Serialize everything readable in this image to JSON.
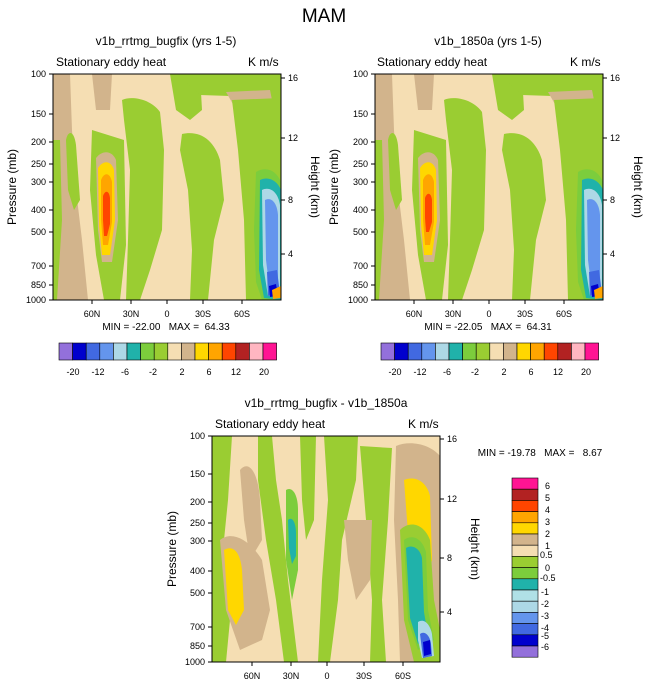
{
  "page": {
    "title": "MAM"
  },
  "colors": {
    "cb_top": [
      "#9370db",
      "#0000cd",
      "#4169e1",
      "#6495ed",
      "#add8e6",
      "#20b2aa",
      "#7ccd3c",
      "#9acd32",
      "#f5deb3",
      "#d2b48c",
      "#ffd700",
      "#ffa500",
      "#ff4500",
      "#b22222",
      "#ffb6c1",
      "#ff1493"
    ],
    "cb_diff": [
      "#9370db",
      "#0000cd",
      "#4169e1",
      "#6495ed",
      "#add8e6",
      "#b0e0e6",
      "#20b2aa",
      "#7ccd3c",
      "#9acd32",
      "#f5deb3",
      "#d2b48c",
      "#ffd700",
      "#ffa500",
      "#ff4500",
      "#b22222",
      "#ff1493"
    ]
  },
  "chart_data": [
    {
      "type": "heatmap",
      "title": "v1b_rrtmg_bugfix (yrs 1-5)",
      "subtitle": "Stationary eddy heat",
      "units": "K m/s",
      "ylabel": "Pressure (mb)",
      "y2label": "Height (km)",
      "x_ticks": [
        "60N",
        "30N",
        "0",
        "30S",
        "60S"
      ],
      "y_ticks": [
        "100",
        "150",
        "200",
        "250",
        "300",
        "400",
        "500",
        "700",
        "850",
        "1000"
      ],
      "y2_ticks": [
        "16",
        "12",
        "8",
        "4"
      ],
      "stats": "MIN = -22.00   MAX =  64.33",
      "colorbar_labels": [
        "-20",
        "-12",
        "-6",
        "-2",
        "2",
        "6",
        "12",
        "20"
      ]
    },
    {
      "type": "heatmap",
      "title": "v1b_1850a (yrs 1-5)",
      "subtitle": "Stationary eddy heat",
      "units": "K m/s",
      "ylabel": "Pressure (mb)",
      "y2label": "Height (km)",
      "x_ticks": [
        "60N",
        "30N",
        "0",
        "30S",
        "60S"
      ],
      "y_ticks": [
        "100",
        "150",
        "200",
        "250",
        "300",
        "400",
        "500",
        "700",
        "850",
        "1000"
      ],
      "y2_ticks": [
        "16",
        "12",
        "8",
        "4"
      ],
      "stats": "MIN = -22.05   MAX =  64.31",
      "colorbar_labels": [
        "-20",
        "-12",
        "-6",
        "-2",
        "2",
        "6",
        "12",
        "20"
      ]
    },
    {
      "type": "heatmap",
      "title": "v1b_rrtmg_bugfix - v1b_1850a",
      "subtitle": "Stationary eddy heat",
      "units": "K m/s",
      "ylabel": "Pressure (mb)",
      "y2label": "Height (km)",
      "x_ticks": [
        "60N",
        "30N",
        "0",
        "30S",
        "60S"
      ],
      "y_ticks": [
        "100",
        "150",
        "200",
        "250",
        "300",
        "400",
        "500",
        "700",
        "850",
        "1000"
      ],
      "y2_ticks": [
        "16",
        "12",
        "8",
        "4"
      ],
      "stats": "MIN = -19.78   MAX =   8.67",
      "colorbar_labels": [
        "6",
        "5",
        "4",
        "3",
        "2",
        "1",
        "0.5",
        "0",
        "-0.5",
        "-1",
        "-2",
        "-3",
        "-4",
        "-5",
        "-6"
      ]
    }
  ]
}
